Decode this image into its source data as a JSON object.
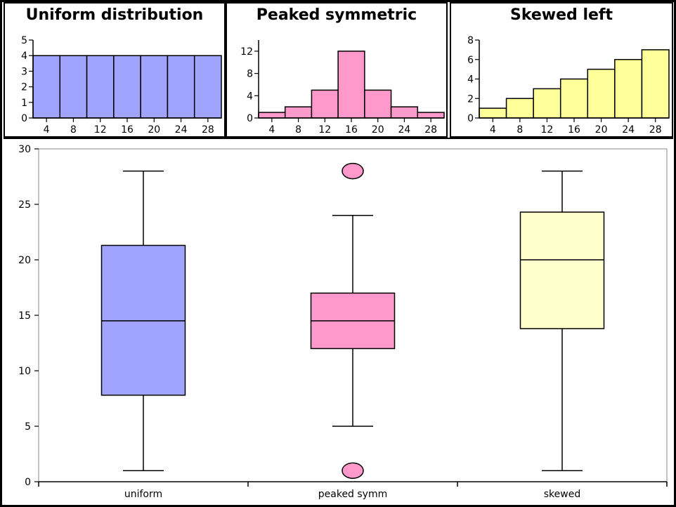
{
  "chart_data": [
    {
      "type": "bar",
      "title": "Uniform distribution",
      "color": "#a0a4ff",
      "bin_edges": [
        2,
        6,
        10,
        14,
        18,
        22,
        26,
        30
      ],
      "values": [
        4,
        4,
        4,
        4,
        4,
        4,
        4
      ],
      "xticks": [
        "4",
        "8",
        "12",
        "16",
        "20",
        "24",
        "28"
      ],
      "xlim": [
        2,
        30
      ],
      "yticks": [
        "0",
        "1",
        "2",
        "3",
        "4",
        "5"
      ],
      "ylim": [
        0,
        5
      ]
    },
    {
      "type": "bar",
      "title": "Peaked symmetric",
      "color": "#ff99cc",
      "bin_edges": [
        2,
        6,
        10,
        14,
        18,
        22,
        26,
        30
      ],
      "values": [
        1,
        2,
        5,
        12,
        5,
        2,
        1
      ],
      "xticks": [
        "4",
        "8",
        "12",
        "16",
        "20",
        "24",
        "28"
      ],
      "xlim": [
        2,
        30
      ],
      "yticks": [
        "0",
        "4",
        "8",
        "12"
      ],
      "ylim": [
        0,
        14
      ]
    },
    {
      "type": "bar",
      "title": "Skewed left",
      "color": "#ffff99",
      "bin_edges": [
        2,
        6,
        10,
        14,
        18,
        22,
        26,
        30
      ],
      "values": [
        1,
        2,
        3,
        4,
        5,
        6,
        7
      ],
      "xticks": [
        "4",
        "8",
        "12",
        "16",
        "20",
        "24",
        "28"
      ],
      "xlim": [
        2,
        30
      ],
      "yticks": [
        "0",
        "2",
        "4",
        "6",
        "8"
      ],
      "ylim": [
        0,
        8
      ]
    },
    {
      "type": "boxplot",
      "title": "",
      "categories": [
        "uniform",
        "peaked symm",
        "skewed"
      ],
      "boxes": [
        {
          "name": "uniform",
          "color": "#a0a4ff",
          "whisker_low": 1,
          "q1": 7.8,
          "median": 14.5,
          "q3": 21.3,
          "whisker_high": 28,
          "outliers": []
        },
        {
          "name": "peaked symm",
          "color": "#ff99cc",
          "whisker_low": 5,
          "q1": 12,
          "median": 14.5,
          "q3": 17,
          "whisker_high": 24,
          "outliers": [
            1,
            28
          ]
        },
        {
          "name": "skewed",
          "color": "#ffffcc",
          "whisker_low": 1,
          "q1": 13.8,
          "median": 20,
          "q3": 24.3,
          "whisker_high": 28,
          "outliers": []
        }
      ],
      "yticks": [
        "0",
        "5",
        "10",
        "15",
        "20",
        "25",
        "30"
      ],
      "ylim": [
        0,
        30
      ]
    }
  ]
}
